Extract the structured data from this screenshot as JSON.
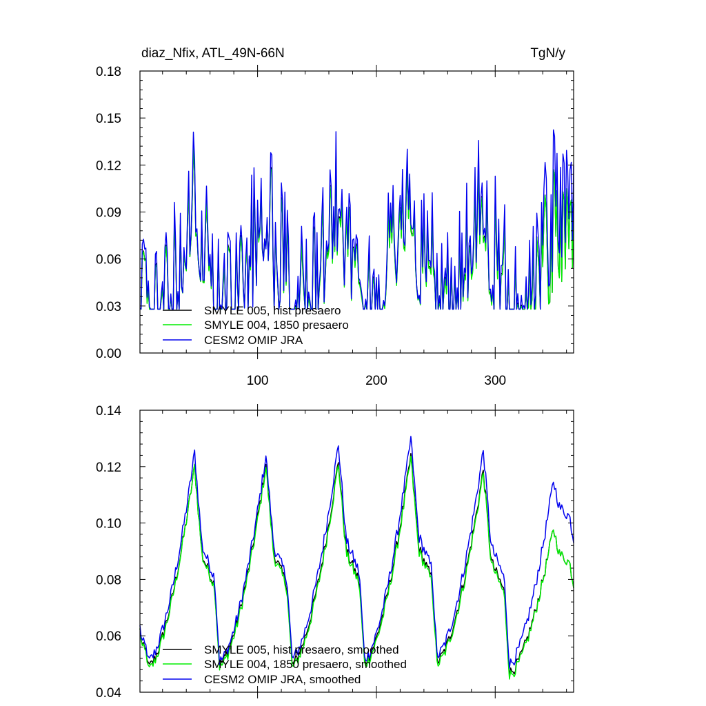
{
  "chart_data": [
    {
      "type": "line",
      "title": "diaz_Nfix, ATL_49N-66N",
      "units": "TgN/y",
      "ylim": [
        0.0,
        0.18
      ],
      "yticks": [
        "0.00",
        "0.03",
        "0.06",
        "0.09",
        "0.12",
        "0.15",
        "0.18"
      ],
      "xlim": [
        1,
        366
      ],
      "xticks": [
        "100",
        "200",
        "300"
      ],
      "legend": [
        {
          "name": "SMYLE 005, hist presaero",
          "color": "#000000"
        },
        {
          "name": "SMYLE 004, 1850 presaero",
          "color": "#00ee00"
        },
        {
          "name": "CESM2 OMIP JRA",
          "color": "#0000ee"
        }
      ],
      "series_summary": "Noisy daily series oscillating between about 0.03 and 0.16 TgN/y with six seasonal peaks near days 45, 105, 165, 225, 285, 340; blue highest, black and green nearly identical."
    },
    {
      "type": "line",
      "ylim": [
        0.04,
        0.14
      ],
      "yticks": [
        "0.04",
        "0.06",
        "0.08",
        "0.10",
        "0.12",
        "0.14"
      ],
      "xlim": [
        1,
        366
      ],
      "xticks": [],
      "legend": [
        {
          "name": "SMYLE 005, hist presaero, smoothed",
          "color": "#000000"
        },
        {
          "name": "SMYLE 004, 1850 presaero, smoothed",
          "color": "#00ee00"
        },
        {
          "name": "CESM2 OMIP JRA, smoothed",
          "color": "#0000ee"
        }
      ],
      "peaks": [
        {
          "day": 47,
          "blue": 0.125,
          "black": 0.12,
          "green": 0.12
        },
        {
          "day": 107,
          "blue": 0.124,
          "black": 0.121,
          "green": 0.12
        },
        {
          "day": 168,
          "blue": 0.128,
          "black": 0.122,
          "green": 0.121
        },
        {
          "day": 229,
          "blue": 0.13,
          "black": 0.124,
          "green": 0.123
        },
        {
          "day": 290,
          "blue": 0.126,
          "black": 0.119,
          "green": 0.118
        },
        {
          "day": 349,
          "blue": 0.115,
          "black": 0.098,
          "green": 0.098
        }
      ],
      "troughs": [
        {
          "day": 8,
          "blue": 0.051,
          "black": 0.049,
          "green": 0.048
        },
        {
          "day": 68,
          "blue": 0.051,
          "black": 0.05,
          "green": 0.049
        },
        {
          "day": 129,
          "blue": 0.052,
          "black": 0.05,
          "green": 0.049
        },
        {
          "day": 190,
          "blue": 0.052,
          "black": 0.051,
          "green": 0.05
        },
        {
          "day": 251,
          "blue": 0.053,
          "black": 0.051,
          "green": 0.05
        },
        {
          "day": 312,
          "blue": 0.05,
          "black": 0.047,
          "green": 0.046
        }
      ]
    }
  ]
}
